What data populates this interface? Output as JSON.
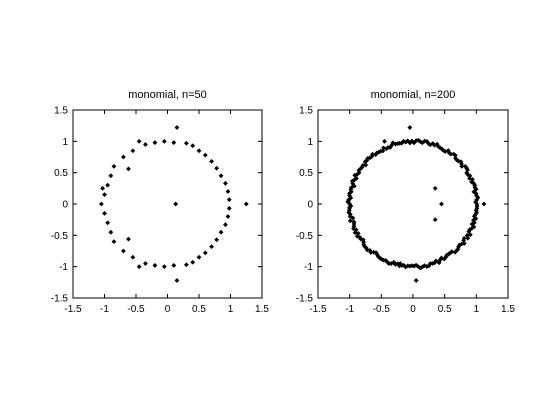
{
  "chart_data": [
    {
      "type": "scatter",
      "title": "monomial, n=50",
      "xlabel": "",
      "ylabel": "",
      "xlim": [
        -1.5,
        1.5
      ],
      "ylim": [
        -1.5,
        1.5
      ],
      "xticks": [
        -1.5,
        -1,
        -0.5,
        0,
        0.5,
        1,
        1.5
      ],
      "yticks": [
        -1.5,
        -1,
        -0.5,
        0,
        0.5,
        1,
        1.5
      ],
      "xtick_labels": [
        "-1.5",
        "-1",
        "-0.5",
        "0",
        "0.5",
        "1",
        "1.5"
      ],
      "ytick_labels": [
        "-1.5",
        "-1",
        "-0.5",
        "0",
        "0.5",
        "1",
        "1.5"
      ],
      "grid": false,
      "marker": "diamond",
      "marker_color": "#000000",
      "series": [
        {
          "points": [
            [
              0.15,
              1.22
            ],
            [
              0.1,
              0.98
            ],
            [
              0.3,
              0.97
            ],
            [
              0.4,
              0.93
            ],
            [
              0.5,
              0.85
            ],
            [
              0.6,
              0.78
            ],
            [
              0.7,
              0.68
            ],
            [
              0.78,
              0.57
            ],
            [
              0.85,
              0.45
            ],
            [
              0.92,
              0.33
            ],
            [
              0.96,
              0.2
            ],
            [
              0.98,
              0.07
            ],
            [
              1.25,
              0.0
            ],
            [
              0.98,
              -0.07
            ],
            [
              0.96,
              -0.2
            ],
            [
              0.92,
              -0.33
            ],
            [
              0.85,
              -0.45
            ],
            [
              0.78,
              -0.57
            ],
            [
              0.7,
              -0.68
            ],
            [
              0.6,
              -0.78
            ],
            [
              0.5,
              -0.85
            ],
            [
              0.4,
              -0.93
            ],
            [
              0.3,
              -0.97
            ],
            [
              0.1,
              -0.98
            ],
            [
              0.15,
              -1.22
            ],
            [
              0.13,
              0.0
            ],
            [
              -0.05,
              1.0
            ],
            [
              -0.2,
              0.98
            ],
            [
              -0.35,
              0.95
            ],
            [
              -0.45,
              1.0
            ],
            [
              -0.55,
              0.85
            ],
            [
              -0.7,
              0.75
            ],
            [
              -0.85,
              0.6
            ],
            [
              -0.9,
              0.45
            ],
            [
              -0.95,
              0.3
            ],
            [
              -1.0,
              0.15
            ],
            [
              -1.05,
              0.0
            ],
            [
              -1.0,
              -0.15
            ],
            [
              -0.95,
              -0.3
            ],
            [
              -0.9,
              -0.45
            ],
            [
              -0.85,
              -0.6
            ],
            [
              -0.7,
              -0.75
            ],
            [
              -0.55,
              -0.85
            ],
            [
              -0.45,
              -1.0
            ],
            [
              -0.35,
              -0.95
            ],
            [
              -0.2,
              -0.98
            ],
            [
              -0.05,
              -1.0
            ],
            [
              -0.62,
              0.56
            ],
            [
              -0.62,
              -0.56
            ],
            [
              -1.03,
              0.25
            ]
          ]
        }
      ]
    },
    {
      "type": "scatter",
      "title": "monomial, n=200",
      "xlabel": "",
      "ylabel": "",
      "xlim": [
        -1.5,
        1.5
      ],
      "ylim": [
        -1.5,
        1.5
      ],
      "xticks": [
        -1.5,
        -1,
        -0.5,
        0,
        0.5,
        1,
        1.5
      ],
      "yticks": [
        -1.5,
        -1,
        -0.5,
        0,
        0.5,
        1,
        1.5
      ],
      "xtick_labels": [
        "-1.5",
        "-1",
        "-0.5",
        "0",
        "0.5",
        "1",
        "1.5"
      ],
      "ytick_labels": [
        "-1.5",
        "-1",
        "-0.5",
        "0",
        "0.5",
        "1",
        "1.5"
      ],
      "grid": false,
      "marker": "diamond",
      "marker_color": "#000000",
      "series": [
        {
          "description_of_ring": "about 190 points clustered on the unit circle",
          "ring_radius": 1.0,
          "ring_count": 190,
          "points": [
            [
              -0.05,
              1.22
            ],
            [
              -0.45,
              1.0
            ],
            [
              0.05,
              -1.22
            ],
            [
              -0.2,
              -0.95
            ],
            [
              0.35,
              0.25
            ],
            [
              0.45,
              0.0
            ],
            [
              0.35,
              -0.25
            ],
            [
              1.12,
              0.0
            ],
            [
              -1.02,
              0.05
            ],
            [
              -1.0,
              -0.05
            ]
          ]
        }
      ]
    }
  ]
}
